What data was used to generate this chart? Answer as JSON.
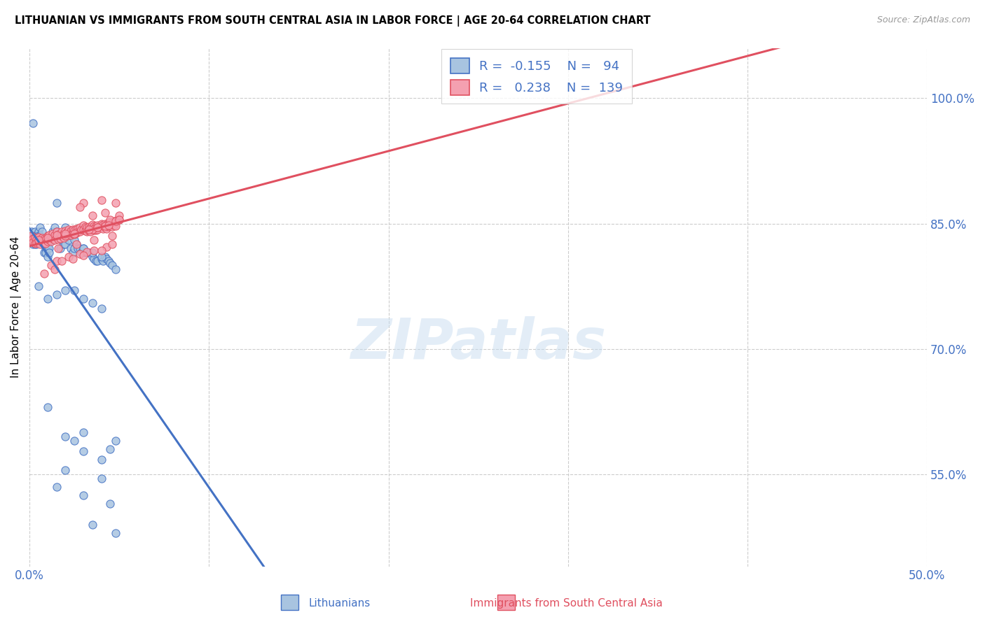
{
  "title": "LITHUANIAN VS IMMIGRANTS FROM SOUTH CENTRAL ASIA IN LABOR FORCE | AGE 20-64 CORRELATION CHART",
  "source": "Source: ZipAtlas.com",
  "ylabel": "In Labor Force | Age 20-64",
  "yticks": [
    0.55,
    0.7,
    0.85,
    1.0
  ],
  "ytick_labels": [
    "55.0%",
    "70.0%",
    "85.0%",
    "100.0%"
  ],
  "xmin": 0.0,
  "xmax": 0.5,
  "ymin": 0.44,
  "ymax": 1.06,
  "blue_R": "-0.155",
  "blue_N": "94",
  "pink_R": "0.238",
  "pink_N": "139",
  "blue_color": "#a8c4e0",
  "pink_color": "#f4a0b0",
  "blue_line_color": "#4472c4",
  "pink_line_color": "#e05060",
  "legend_label_blue": "Lithuanians",
  "legend_label_pink": "Immigrants from South Central Asia",
  "watermark": "ZIPatlas",
  "blue_scatter_x": [
    0.001,
    0.001,
    0.002,
    0.002,
    0.003,
    0.003,
    0.003,
    0.004,
    0.004,
    0.005,
    0.005,
    0.005,
    0.006,
    0.006,
    0.007,
    0.007,
    0.008,
    0.008,
    0.009,
    0.009,
    0.01,
    0.01,
    0.011,
    0.011,
    0.012,
    0.013,
    0.013,
    0.014,
    0.014,
    0.015,
    0.016,
    0.017,
    0.018,
    0.019,
    0.02,
    0.021,
    0.022,
    0.023,
    0.024,
    0.025,
    0.026,
    0.027,
    0.028,
    0.029,
    0.03,
    0.031,
    0.032,
    0.033,
    0.035,
    0.036,
    0.037,
    0.038,
    0.04,
    0.041,
    0.042,
    0.043,
    0.044,
    0.045,
    0.046,
    0.048,
    0.002,
    0.015,
    0.02,
    0.025,
    0.03,
    0.035,
    0.04,
    0.005,
    0.01,
    0.015,
    0.02,
    0.025,
    0.03,
    0.035,
    0.04,
    0.01,
    0.02,
    0.03,
    0.04,
    0.015,
    0.03,
    0.045,
    0.02,
    0.04,
    0.025,
    0.045,
    0.03,
    0.048,
    0.035,
    0.048
  ],
  "blue_scatter_y": [
    0.84,
    0.83,
    0.835,
    0.825,
    0.84,
    0.835,
    0.825,
    0.835,
    0.825,
    0.84,
    0.835,
    0.83,
    0.845,
    0.835,
    0.84,
    0.83,
    0.825,
    0.815,
    0.82,
    0.815,
    0.82,
    0.81,
    0.82,
    0.815,
    0.83,
    0.84,
    0.83,
    0.845,
    0.835,
    0.84,
    0.835,
    0.82,
    0.83,
    0.825,
    0.825,
    0.835,
    0.83,
    0.82,
    0.815,
    0.82,
    0.825,
    0.82,
    0.82,
    0.815,
    0.82,
    0.815,
    0.815,
    0.815,
    0.81,
    0.808,
    0.805,
    0.805,
    0.808,
    0.805,
    0.81,
    0.808,
    0.805,
    0.803,
    0.8,
    0.795,
    0.97,
    0.875,
    0.845,
    0.83,
    0.82,
    0.815,
    0.81,
    0.775,
    0.76,
    0.765,
    0.77,
    0.77,
    0.76,
    0.755,
    0.748,
    0.63,
    0.595,
    0.578,
    0.568,
    0.535,
    0.525,
    0.515,
    0.555,
    0.545,
    0.59,
    0.58,
    0.6,
    0.59,
    0.49,
    0.48
  ],
  "pink_scatter_x": [
    0.001,
    0.001,
    0.002,
    0.002,
    0.003,
    0.003,
    0.004,
    0.004,
    0.005,
    0.005,
    0.006,
    0.006,
    0.007,
    0.007,
    0.008,
    0.008,
    0.009,
    0.009,
    0.01,
    0.01,
    0.011,
    0.011,
    0.012,
    0.012,
    0.013,
    0.013,
    0.014,
    0.014,
    0.015,
    0.015,
    0.016,
    0.016,
    0.017,
    0.017,
    0.018,
    0.018,
    0.019,
    0.019,
    0.02,
    0.02,
    0.021,
    0.021,
    0.022,
    0.022,
    0.023,
    0.023,
    0.024,
    0.024,
    0.025,
    0.025,
    0.026,
    0.026,
    0.027,
    0.027,
    0.028,
    0.028,
    0.029,
    0.03,
    0.03,
    0.031,
    0.031,
    0.032,
    0.032,
    0.033,
    0.033,
    0.034,
    0.034,
    0.035,
    0.035,
    0.036,
    0.036,
    0.037,
    0.037,
    0.038,
    0.038,
    0.039,
    0.04,
    0.04,
    0.041,
    0.041,
    0.042,
    0.042,
    0.043,
    0.043,
    0.044,
    0.044,
    0.045,
    0.045,
    0.046,
    0.046,
    0.047,
    0.047,
    0.048,
    0.048,
    0.049,
    0.03,
    0.04,
    0.045,
    0.05,
    0.02,
    0.025,
    0.035,
    0.038,
    0.042,
    0.048,
    0.015,
    0.022,
    0.028,
    0.032,
    0.036,
    0.043,
    0.046,
    0.012,
    0.018,
    0.024,
    0.03,
    0.04,
    0.005,
    0.01,
    0.015,
    0.02,
    0.033,
    0.038,
    0.044,
    0.028,
    0.048,
    0.035,
    0.042,
    0.016,
    0.026,
    0.036,
    0.046,
    0.008,
    0.014,
    0.05,
    0.05
  ],
  "pink_scatter_y": [
    0.835,
    0.83,
    0.832,
    0.828,
    0.833,
    0.826,
    0.831,
    0.827,
    0.834,
    0.829,
    0.828,
    0.825,
    0.833,
    0.828,
    0.832,
    0.827,
    0.831,
    0.826,
    0.835,
    0.829,
    0.836,
    0.83,
    0.834,
    0.829,
    0.838,
    0.832,
    0.836,
    0.83,
    0.84,
    0.834,
    0.837,
    0.831,
    0.836,
    0.832,
    0.84,
    0.835,
    0.838,
    0.833,
    0.841,
    0.836,
    0.84,
    0.835,
    0.843,
    0.838,
    0.841,
    0.836,
    0.843,
    0.838,
    0.842,
    0.837,
    0.844,
    0.839,
    0.844,
    0.84,
    0.845,
    0.84,
    0.843,
    0.848,
    0.843,
    0.846,
    0.841,
    0.845,
    0.84,
    0.846,
    0.841,
    0.845,
    0.84,
    0.849,
    0.844,
    0.847,
    0.842,
    0.847,
    0.842,
    0.848,
    0.843,
    0.846,
    0.85,
    0.845,
    0.849,
    0.844,
    0.85,
    0.845,
    0.849,
    0.844,
    0.851,
    0.846,
    0.852,
    0.847,
    0.851,
    0.846,
    0.853,
    0.848,
    0.852,
    0.847,
    0.855,
    0.875,
    0.878,
    0.855,
    0.855,
    0.835,
    0.838,
    0.843,
    0.845,
    0.847,
    0.853,
    0.805,
    0.81,
    0.814,
    0.816,
    0.818,
    0.822,
    0.825,
    0.8,
    0.805,
    0.808,
    0.812,
    0.818,
    0.83,
    0.833,
    0.836,
    0.838,
    0.843,
    0.845,
    0.848,
    0.87,
    0.875,
    0.86,
    0.863,
    0.82,
    0.825,
    0.83,
    0.835,
    0.79,
    0.795,
    0.86,
    0.855
  ]
}
